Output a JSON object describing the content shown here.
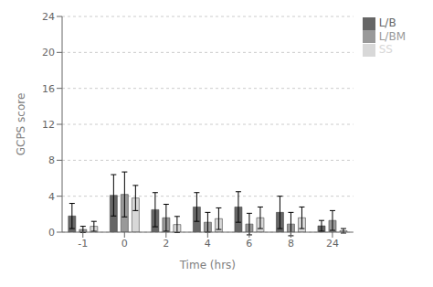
{
  "chart_data": {
    "type": "bar",
    "xlabel": "Time (hrs)",
    "ylabel": "GCPS score",
    "categories": [
      "-1",
      "0",
      "2",
      "4",
      "6",
      "8",
      "24"
    ],
    "series": [
      {
        "name": "L/B",
        "color": "#666666",
        "values": [
          1.8,
          4.1,
          2.5,
          2.8,
          2.8,
          2.2,
          0.7
        ],
        "errors": [
          1.4,
          2.3,
          1.9,
          1.6,
          1.7,
          1.8,
          0.6
        ]
      },
      {
        "name": "L/BM",
        "color": "#999999",
        "values": [
          0.3,
          4.2,
          1.6,
          1.1,
          0.9,
          0.9,
          1.3
        ],
        "errors": [
          0.35,
          2.5,
          1.5,
          1.1,
          1.2,
          1.3,
          1.1
        ]
      },
      {
        "name": "SS",
        "color": "#d8d8d8",
        "values": [
          0.65,
          3.8,
          0.85,
          1.5,
          1.6,
          1.6,
          0.15
        ],
        "errors": [
          0.55,
          1.4,
          0.9,
          1.2,
          1.2,
          1.2,
          0.25
        ]
      }
    ],
    "ylim": [
      0,
      24
    ],
    "yticks": [
      0,
      4,
      8,
      12,
      16,
      20,
      24
    ],
    "grid": true,
    "legend": "right"
  }
}
